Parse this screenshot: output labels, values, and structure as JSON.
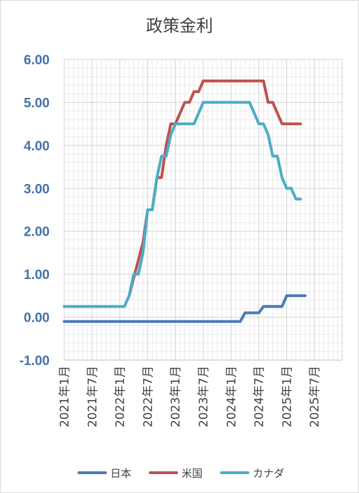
{
  "chart_data": {
    "type": "line",
    "title": "政策金利",
    "xlabel": "",
    "ylabel": "",
    "ylim": [
      -1.0,
      6.0
    ],
    "y_ticks": [
      "6.00",
      "5.00",
      "4.00",
      "3.00",
      "2.00",
      "1.00",
      "0.00",
      "-1.00"
    ],
    "y_tick_values": [
      6,
      5,
      4,
      3,
      2,
      1,
      0,
      -1
    ],
    "x_range": [
      "2021-01",
      "2026-01"
    ],
    "x_ticks": [
      "2021年1月",
      "2021年7月",
      "2022年1月",
      "2022年7月",
      "2023年1月",
      "2023年7月",
      "2024年1月",
      "2024年7月",
      "2025年1月",
      "2025年7月"
    ],
    "grid": true,
    "legend_position": "bottom",
    "series": [
      {
        "name": "日本",
        "color": "#4a7ab8",
        "points": [
          [
            "2021-01",
            -0.1
          ],
          [
            "2024-03",
            -0.1
          ],
          [
            "2024-04",
            0.1
          ],
          [
            "2024-07",
            0.1
          ],
          [
            "2024-08",
            0.25
          ],
          [
            "2024-12",
            0.25
          ],
          [
            "2025-01",
            0.5
          ],
          [
            "2025-05",
            0.5
          ]
        ]
      },
      {
        "name": "米国",
        "color": "#c0504d",
        "points": [
          [
            "2022-03",
            0.5
          ],
          [
            "2022-06",
            1.75
          ],
          [
            "2022-07",
            2.5
          ],
          [
            "2022-08",
            2.5
          ],
          [
            "2022-09",
            3.25
          ],
          [
            "2022-10",
            3.25
          ],
          [
            "2022-11",
            4.0
          ],
          [
            "2022-12",
            4.5
          ],
          [
            "2023-01",
            4.5
          ],
          [
            "2023-02",
            4.75
          ],
          [
            "2023-03",
            5.0
          ],
          [
            "2023-04",
            5.0
          ],
          [
            "2023-05",
            5.25
          ],
          [
            "2023-06",
            5.25
          ],
          [
            "2023-07",
            5.5
          ],
          [
            "2024-08",
            5.5
          ],
          [
            "2024-09",
            5.0
          ],
          [
            "2024-10",
            5.0
          ],
          [
            "2024-11",
            4.75
          ],
          [
            "2024-12",
            4.5
          ],
          [
            "2025-04",
            4.5
          ]
        ]
      },
      {
        "name": "カナダ",
        "color": "#4bacc6",
        "points": [
          [
            "2021-01",
            0.25
          ],
          [
            "2022-02",
            0.25
          ],
          [
            "2022-03",
            0.5
          ],
          [
            "2022-04",
            1.0
          ],
          [
            "2022-05",
            1.0
          ],
          [
            "2022-06",
            1.5
          ],
          [
            "2022-07",
            2.5
          ],
          [
            "2022-08",
            2.5
          ],
          [
            "2022-09",
            3.25
          ],
          [
            "2022-10",
            3.75
          ],
          [
            "2022-11",
            3.75
          ],
          [
            "2022-12",
            4.25
          ],
          [
            "2023-01",
            4.5
          ],
          [
            "2023-05",
            4.5
          ],
          [
            "2023-06",
            4.75
          ],
          [
            "2023-07",
            5.0
          ],
          [
            "2024-05",
            5.0
          ],
          [
            "2024-06",
            4.75
          ],
          [
            "2024-07",
            4.5
          ],
          [
            "2024-08",
            4.5
          ],
          [
            "2024-09",
            4.25
          ],
          [
            "2024-10",
            3.75
          ],
          [
            "2024-11",
            3.75
          ],
          [
            "2024-12",
            3.25
          ],
          [
            "2025-01",
            3.0
          ],
          [
            "2025-02",
            3.0
          ],
          [
            "2025-03",
            2.75
          ],
          [
            "2025-04",
            2.75
          ]
        ]
      }
    ]
  }
}
